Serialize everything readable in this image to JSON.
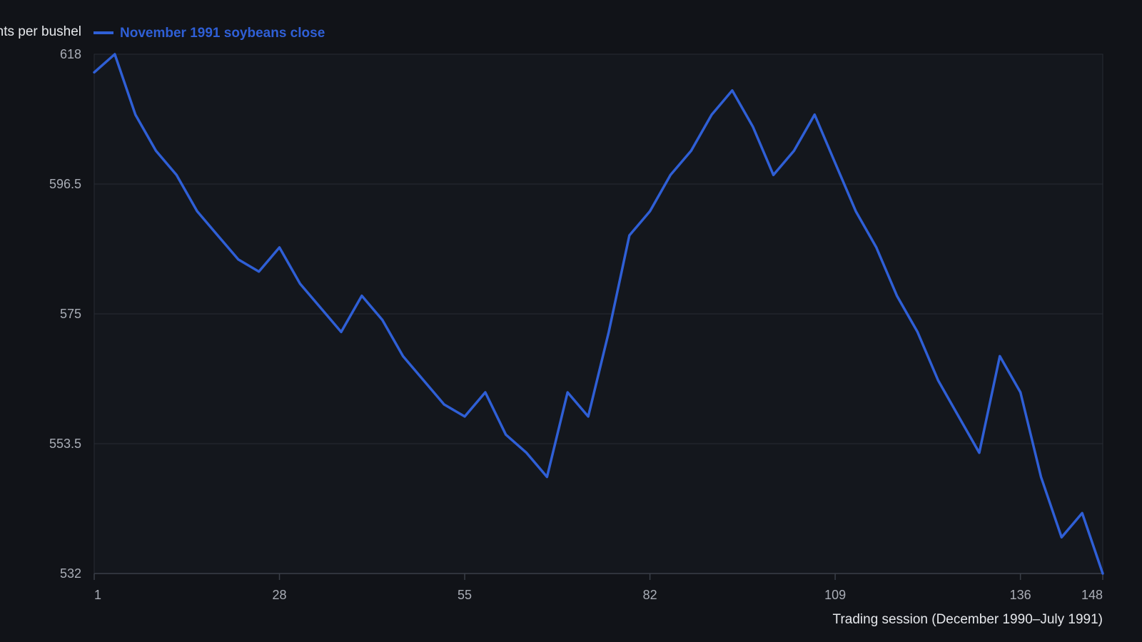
{
  "colors": {
    "background": "#111318",
    "plot_background": "#14171d",
    "grid": "#272b33",
    "axis": "#3a3f48",
    "series": "#2f5fd6"
  },
  "chart_data": {
    "type": "line",
    "title": "",
    "xlabel": "Trading session (December 1990–July 1991)",
    "ylabel": "Cents per bushel",
    "xlim": [
      1,
      148
    ],
    "ylim": [
      532,
      618
    ],
    "x_ticks": [
      "1",
      "28",
      "55",
      "82",
      "109",
      "136",
      "148"
    ],
    "y_ticks": [
      "618",
      "596.5",
      "575",
      "553.5",
      "532"
    ],
    "grid": true,
    "legend_position": "top-left",
    "series": [
      {
        "name": "November 1991 soybeans close",
        "x": [
          1,
          4,
          7,
          10,
          13,
          16,
          19,
          22,
          25,
          28,
          31,
          34,
          37,
          40,
          43,
          46,
          49,
          52,
          55,
          58,
          61,
          64,
          67,
          70,
          73,
          76,
          79,
          82,
          85,
          88,
          91,
          94,
          97,
          100,
          103,
          106,
          109,
          112,
          115,
          118,
          121,
          124,
          127,
          130,
          133,
          136,
          139,
          142,
          145,
          148
        ],
        "y": [
          615,
          618,
          608,
          602,
          598,
          592,
          588,
          584,
          582,
          586,
          580,
          576,
          572,
          578,
          574,
          568,
          564,
          560,
          558,
          562,
          555,
          552,
          548,
          562,
          558,
          572,
          588,
          592,
          598,
          602,
          608,
          612,
          606,
          598,
          602,
          608,
          600,
          592,
          586,
          578,
          572,
          564,
          558,
          552,
          568,
          562,
          548,
          538,
          542,
          532
        ]
      }
    ]
  }
}
